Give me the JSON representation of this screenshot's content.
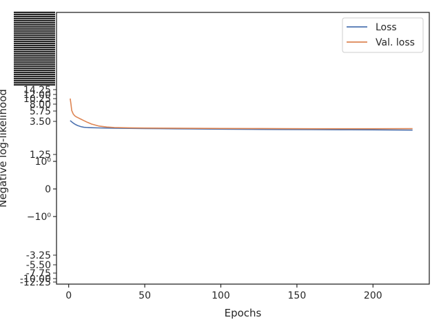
{
  "chart_data": {
    "type": "line",
    "xlabel": "Epochs",
    "ylabel": "Negative log-likelihood",
    "xlim": [
      -8,
      237
    ],
    "x_ticks": [
      0,
      50,
      100,
      150,
      200
    ],
    "y_scale": "symlog",
    "y_ticks": [
      {
        "label": "10⁰"
      },
      {
        "label": "0"
      },
      {
        "label": "−10⁰"
      }
    ],
    "y_tick_labels_overlay": [
      "14.25",
      "12.00",
      "10.25",
      "8.00",
      "5.75",
      "3.50",
      "1.25",
      "-3.25",
      "-5.50",
      "-7.75",
      "-10.00",
      "-12.25"
    ],
    "grid": false,
    "legend_position": "top-right",
    "series": [
      {
        "name": "Loss",
        "color": "#4c72b0",
        "x": [
          1,
          2,
          3,
          4,
          5,
          6,
          8,
          10,
          12,
          15,
          20,
          25,
          30,
          40,
          50,
          60,
          80,
          100,
          120,
          140,
          160,
          180,
          200,
          226
        ],
        "y": [
          30,
          27,
          24.5,
          22.5,
          21,
          19.8,
          18.2,
          17.2,
          16.9,
          16.6,
          16.3,
          16.1,
          15.95,
          15.7,
          15.5,
          15.3,
          15.0,
          14.7,
          14.5,
          14.3,
          14.15,
          14.0,
          13.85,
          13.6
        ]
      },
      {
        "name": "Val. loss",
        "color": "#dd8452",
        "x": [
          1,
          1.5,
          2,
          3,
          4,
          5,
          6,
          8,
          10,
          12,
          15,
          20,
          25,
          30,
          40,
          50,
          60,
          80,
          100,
          120,
          140,
          160,
          180,
          200,
          226
        ],
        "y": [
          190,
          120,
          70,
          52,
          45,
          41,
          38.5,
          34,
          30,
          26.5,
          22.5,
          19,
          17.6,
          16.9,
          16.35,
          16.15,
          16.0,
          15.8,
          15.6,
          15.45,
          15.35,
          15.25,
          15.2,
          15.2,
          15.3
        ]
      }
    ]
  }
}
